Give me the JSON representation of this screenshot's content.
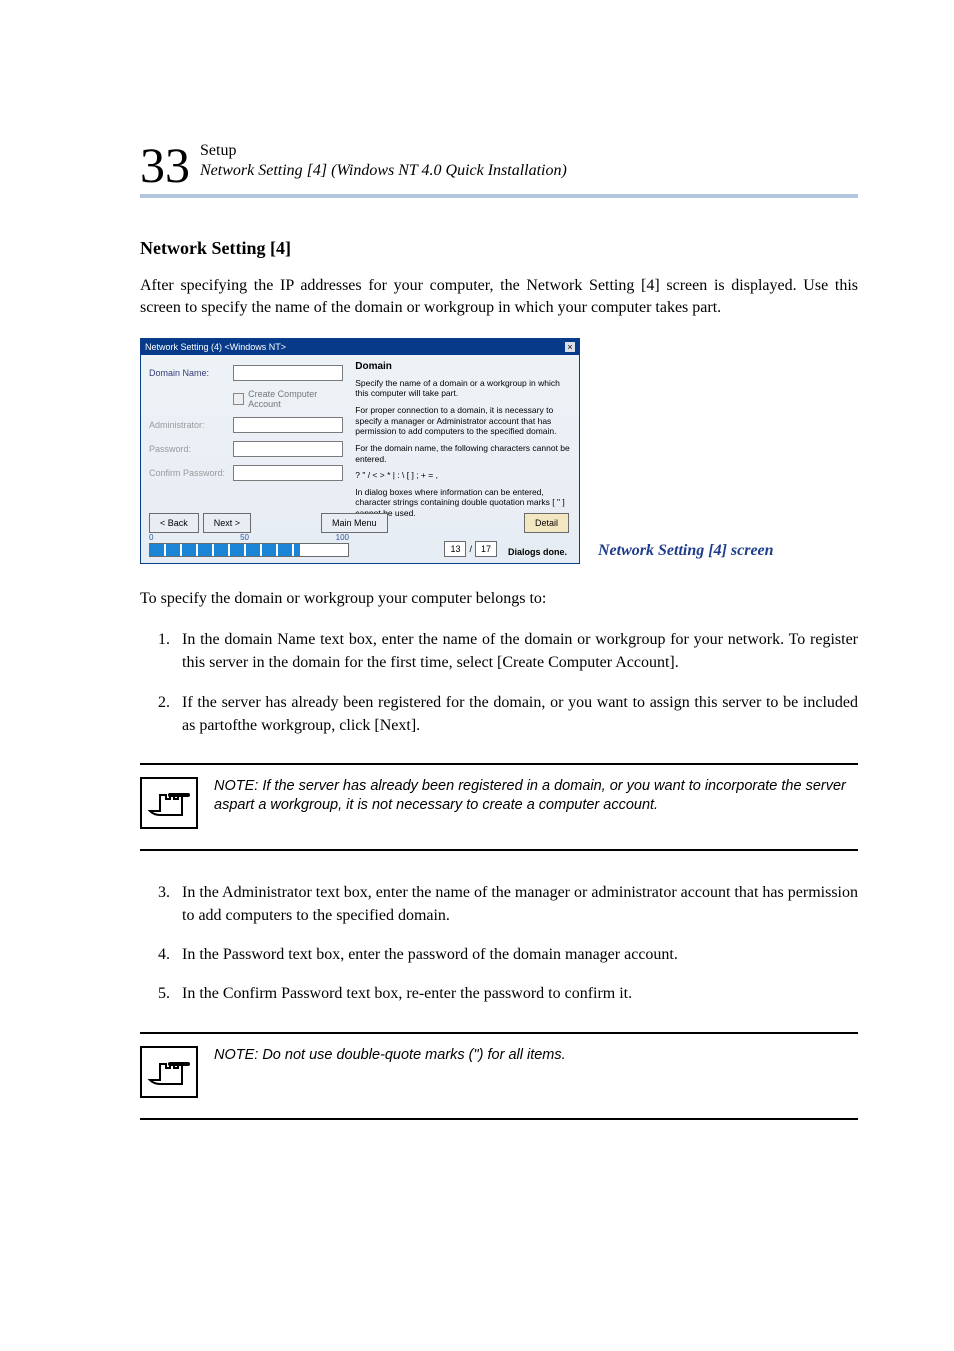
{
  "header": {
    "chapter_num": "33",
    "title": "Setup",
    "subtitle": "Network Setting [4] (Windows NT 4.0 Quick Installation)",
    "rule_color": "#b3c6e0"
  },
  "section_title": "Network Setting [4]",
  "intro": "After specifying the IP addresses for your computer, the Network Setting [4] screen is displayed. Use this screen to specify the name of the domain or workgroup in which your computer takes part.",
  "screenshot": {
    "titlebar": "Network Setting (4) <Windows NT>",
    "left": {
      "domain_label": "Domain Name:",
      "checkbox_label": "Create Computer Account",
      "admin_label": "Administrator:",
      "password_label": "Password:",
      "confirm_label": "Confirm Password:"
    },
    "right": {
      "heading": "Domain",
      "p1": "Specify the name of a domain or a workgroup in which this computer will take part.",
      "p2": "For proper connection to a domain, it is necessary to specify a manager or Administrator account that has permission to add computers to the specified domain.",
      "p3": "For the domain name, the following characters cannot be entered.",
      "p4": "? \" / < > * | : \\ [ ] ; + = ,",
      "p5": "In dialog boxes where information can be entered, character strings containing double quotation marks [ \" ] cannot be used."
    },
    "buttons": {
      "back": "< Back",
      "next": "Next >",
      "main_menu": "Main Menu",
      "detail": "Detail"
    },
    "progress": {
      "label0": "0",
      "label50": "50",
      "label100": "100",
      "percent": 76
    },
    "counter": {
      "current": "13",
      "sep": "/",
      "total": "17",
      "label": "Dialogs done."
    }
  },
  "caption": "Network Setting [4] screen",
  "pre_steps": "To specify the domain or workgroup your computer belongs to:",
  "steps_a": [
    "In the domain Name text box, enter the name of the domain or workgroup for your network. To register this server in the domain for the first time, select [Create Computer Account].",
    "If the server has already been registered for the domain, or you want to assign this server to be included as partofthe workgroup, click [Next]."
  ],
  "note1": "NOTE: If the server has already been registered  in a domain, or you want to incorporate the server aspart a workgroup, it is not necessary to create a computer account.",
  "steps_b": [
    "In the Administrator text box, enter the name of the manager or administrator account that has permission to add computers to the specified domain.",
    "In the Password text box, enter the password of the domain manager account.",
    "In the Confirm Password text box, re-enter the password to confirm it."
  ],
  "note2": "NOTE: Do not use double-quote marks (\") for all items."
}
